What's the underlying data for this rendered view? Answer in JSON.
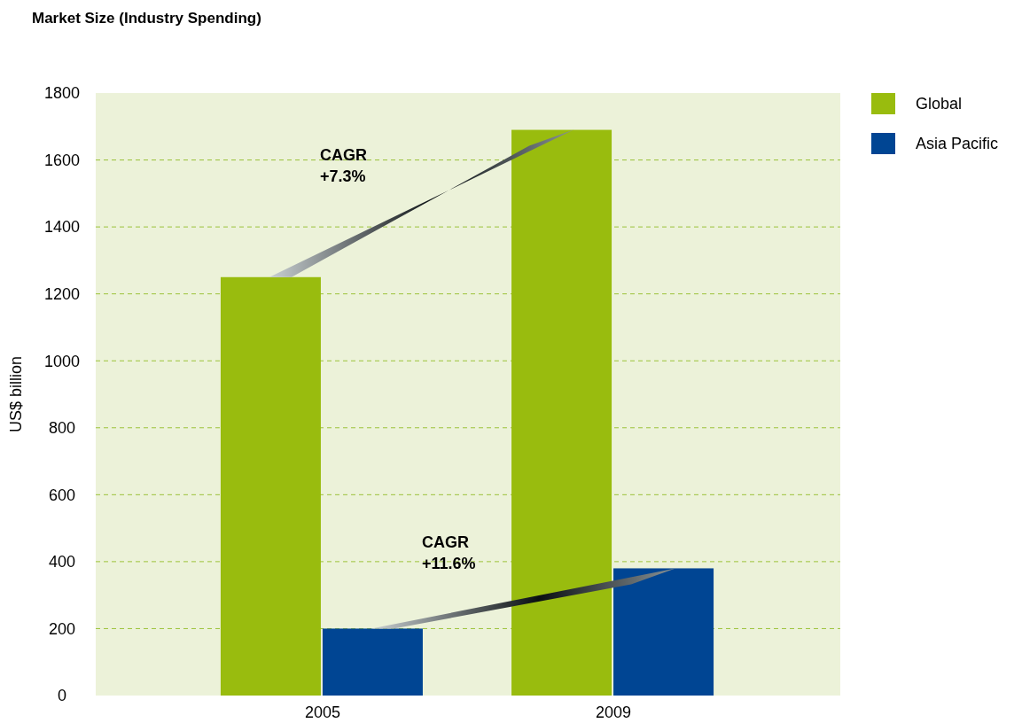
{
  "chart_data": {
    "type": "bar",
    "title": "Market Size (Industry Spending)",
    "ylabel": "US$ billion",
    "categories": [
      "2005",
      "2009"
    ],
    "series": [
      {
        "name": "Global",
        "color": "#99bc0e",
        "values": [
          1250,
          1690
        ]
      },
      {
        "name": "Asia Pacific",
        "color": "#004593",
        "values": [
          200,
          380
        ]
      }
    ],
    "ylim": [
      0,
      1800
    ],
    "yticks": [
      0,
      200,
      400,
      600,
      800,
      1000,
      1200,
      1400,
      1600,
      1800
    ],
    "grid": "y",
    "legend": "top right",
    "annotations": [
      "CAGR\n+7.3%",
      "CAGR\n+11.6%"
    ]
  }
}
